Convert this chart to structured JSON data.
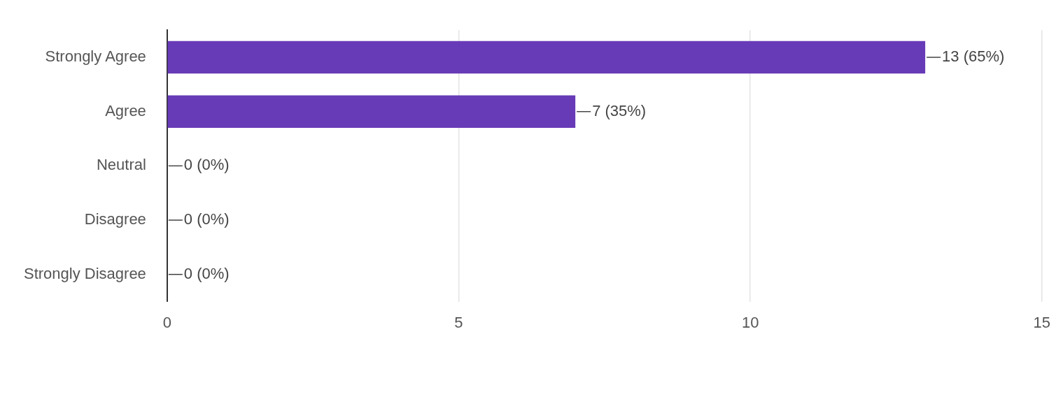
{
  "chart_data": {
    "type": "bar",
    "orientation": "horizontal",
    "categories": [
      "Strongly Agree",
      "Agree",
      "Neutral",
      "Disagree",
      "Strongly Disagree"
    ],
    "values": [
      13,
      7,
      0,
      0,
      0
    ],
    "color": "#673ab7",
    "value_labels": [
      "13 (65%)",
      "7 (35%)",
      "0 (0%)",
      "0 (0%)",
      "0 (0%)"
    ],
    "xlim": [
      0,
      15
    ],
    "xticks": [
      0,
      5,
      10,
      15
    ],
    "grid": "x",
    "legend": false
  }
}
